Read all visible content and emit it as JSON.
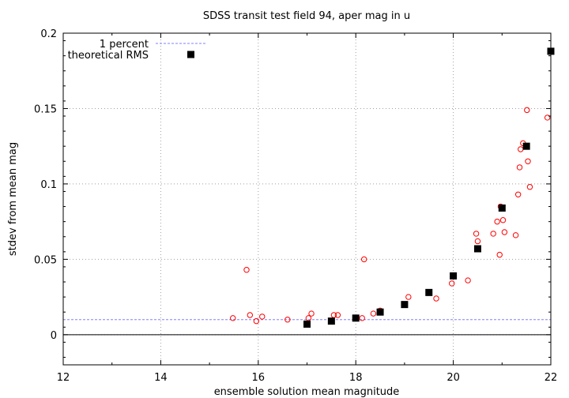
{
  "chart_data": {
    "type": "scatter",
    "title": "SDSS transit test field 94, aper mag in u",
    "xlabel": "ensemble solution mean magnitude",
    "ylabel": "stdev from mean mag",
    "xlim": [
      12,
      22
    ],
    "ylim": [
      -0.02,
      0.2
    ],
    "x_ticks": [
      12,
      14,
      16,
      18,
      20,
      22
    ],
    "x_tick_labels": [
      "12",
      "14",
      "16",
      "18",
      "20",
      "22"
    ],
    "y_ticks": [
      0,
      0.05,
      0.1,
      0.15,
      0.2
    ],
    "y_tick_labels": [
      "0",
      "0.05",
      "0.1",
      "0.15",
      "0.2"
    ],
    "grid": true,
    "legend_position": "top-left",
    "colors": {
      "stars": "#ff0000",
      "one_percent": "#8080ff",
      "theoretical": "#000000",
      "grid": "#a0a0a0"
    },
    "one_percent_level": 0.01,
    "zero_line": 0,
    "series": [
      {
        "kind": "stars",
        "points": [
          [
            15.48,
            0.011
          ],
          [
            15.76,
            0.043
          ],
          [
            15.83,
            0.013
          ],
          [
            15.96,
            0.009
          ],
          [
            16.08,
            0.012
          ],
          [
            16.6,
            0.01
          ],
          [
            17.03,
            0.011
          ],
          [
            17.09,
            0.014
          ],
          [
            17.55,
            0.013
          ],
          [
            17.63,
            0.013
          ],
          [
            18.0,
            0.011
          ],
          [
            18.13,
            0.011
          ],
          [
            18.17,
            0.05
          ],
          [
            18.36,
            0.014
          ],
          [
            18.5,
            0.016
          ],
          [
            19.08,
            0.025
          ],
          [
            19.65,
            0.024
          ],
          [
            19.97,
            0.034
          ],
          [
            20.3,
            0.036
          ],
          [
            20.47,
            0.067
          ],
          [
            20.5,
            0.062
          ],
          [
            20.82,
            0.067
          ],
          [
            20.9,
            0.075
          ],
          [
            20.95,
            0.053
          ],
          [
            20.97,
            0.085
          ],
          [
            21.02,
            0.076
          ],
          [
            21.05,
            0.068
          ],
          [
            21.28,
            0.066
          ],
          [
            21.33,
            0.093
          ],
          [
            21.36,
            0.111
          ],
          [
            21.38,
            0.123
          ],
          [
            21.43,
            0.127
          ],
          [
            21.51,
            0.149
          ],
          [
            21.53,
            0.115
          ],
          [
            21.57,
            0.098
          ],
          [
            21.93,
            0.144
          ]
        ]
      },
      {
        "kind": "one_percent",
        "name": "1 percent",
        "y": 0.01
      },
      {
        "kind": "theoretical",
        "name": "theoretical RMS",
        "points": [
          [
            17.0,
            0.007
          ],
          [
            17.5,
            0.009
          ],
          [
            18.0,
            0.011
          ],
          [
            18.5,
            0.015
          ],
          [
            19.0,
            0.02
          ],
          [
            19.5,
            0.028
          ],
          [
            20.0,
            0.039
          ],
          [
            20.5,
            0.057
          ],
          [
            21.0,
            0.084
          ],
          [
            21.5,
            0.125
          ],
          [
            22.0,
            0.188
          ]
        ]
      }
    ]
  }
}
